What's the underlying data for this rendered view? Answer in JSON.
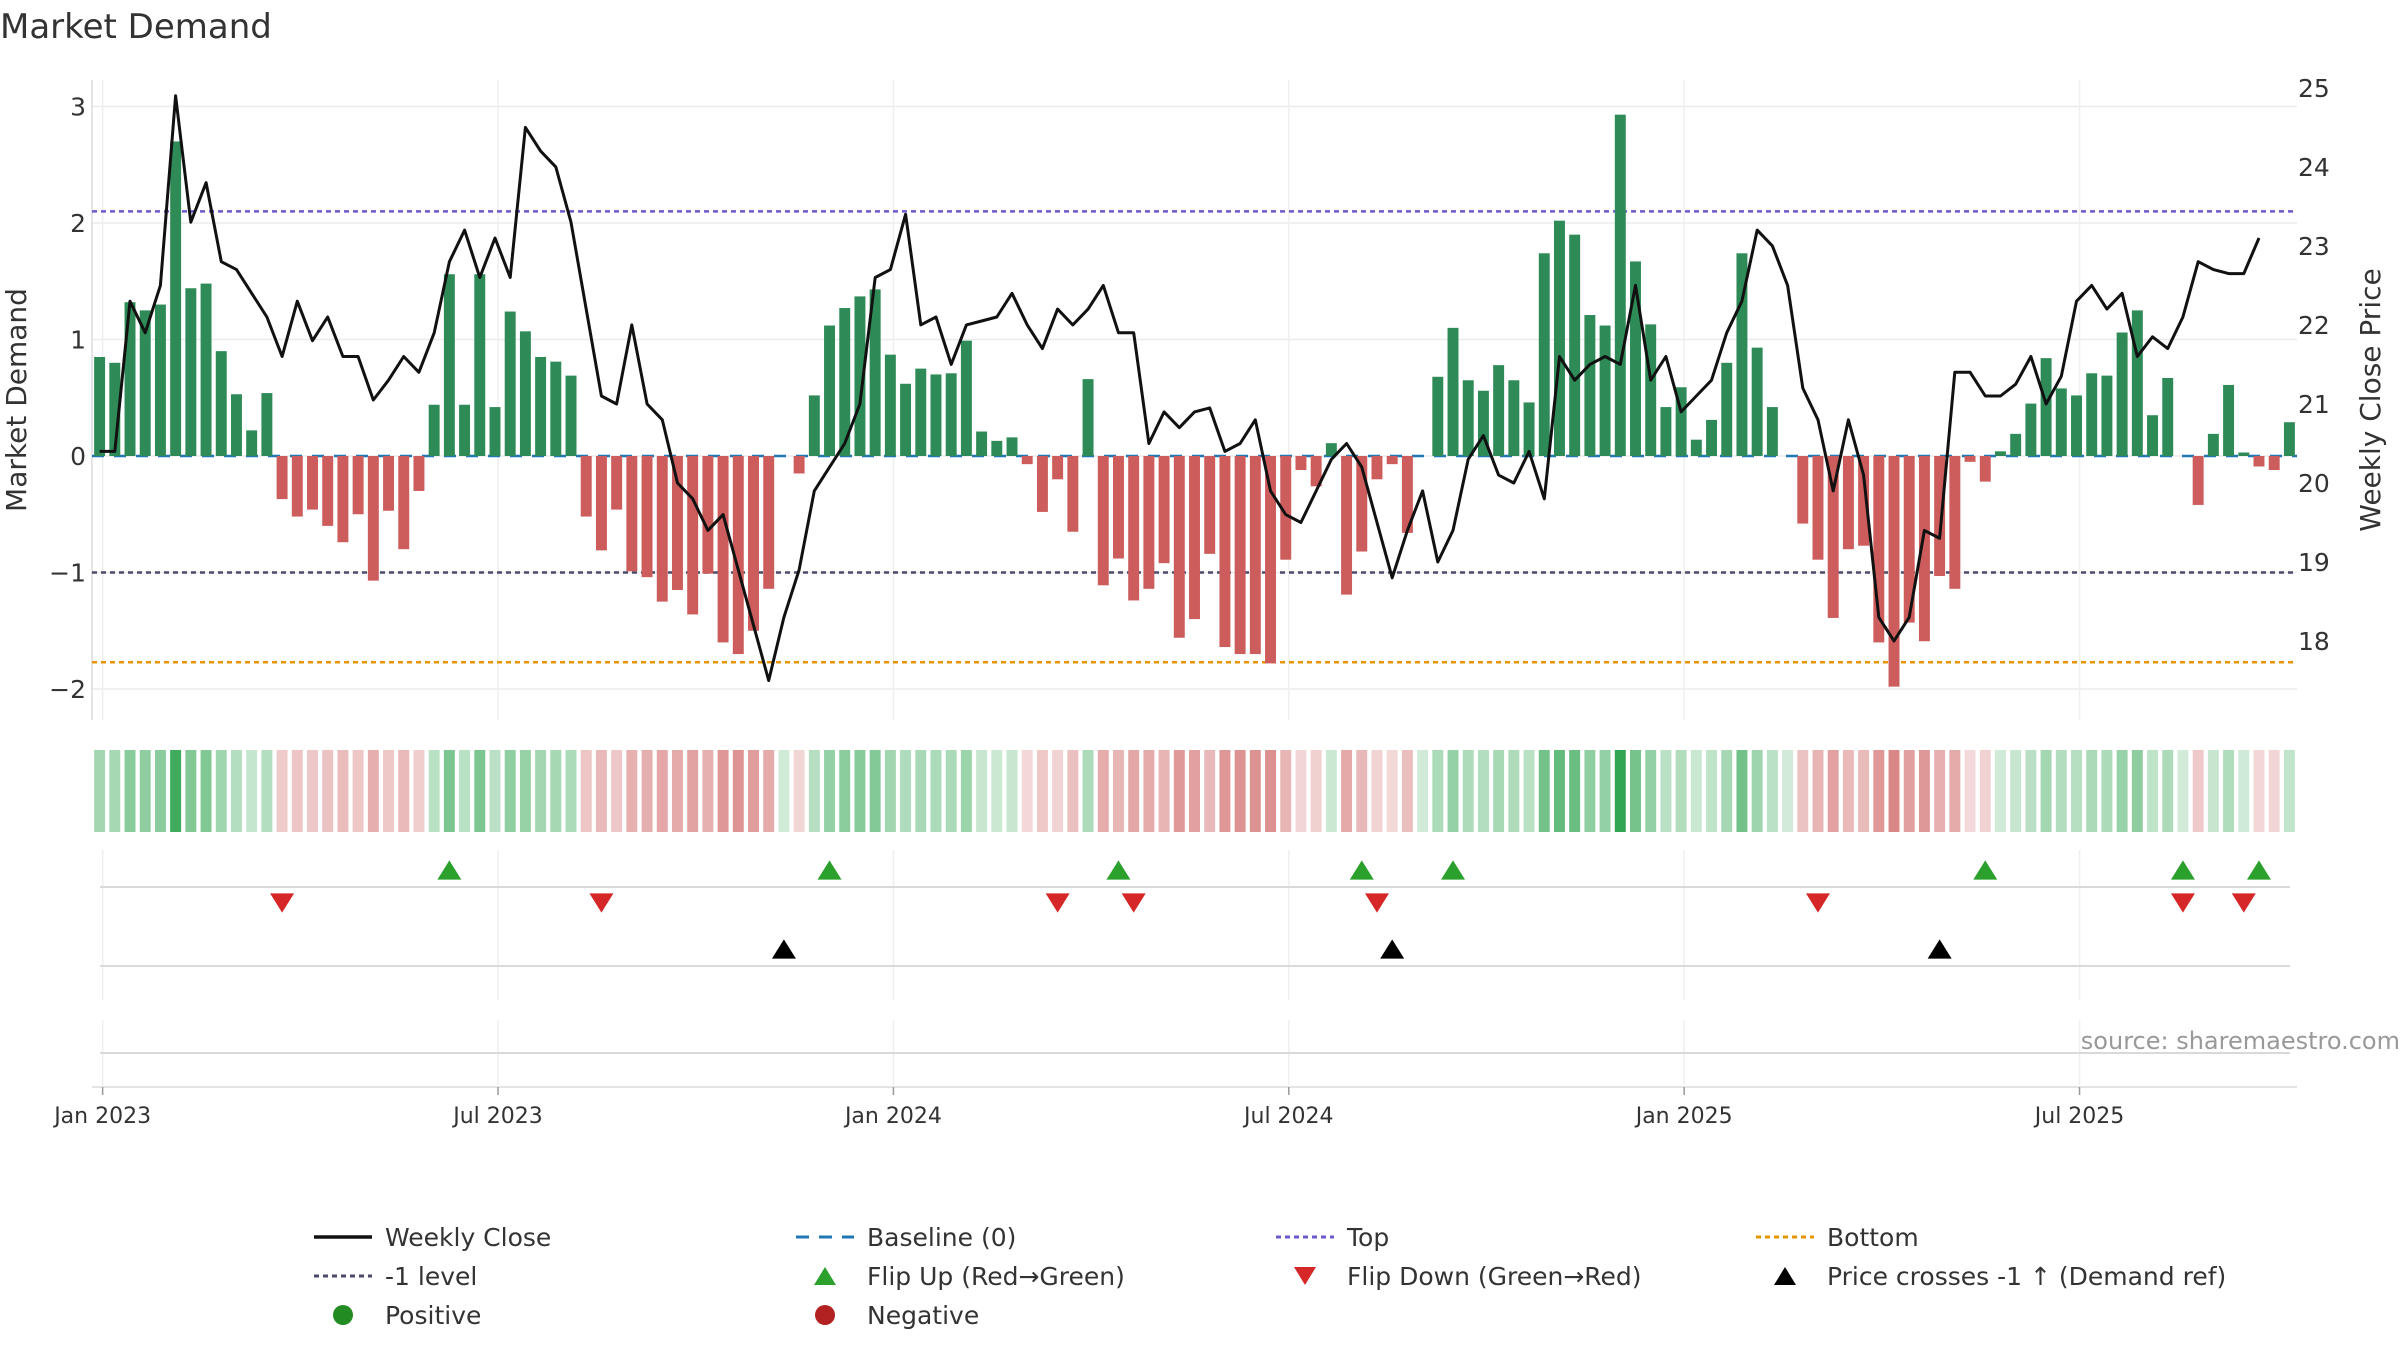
{
  "chart_data": {
    "type": "bar",
    "title": "Market Demand",
    "ylabel_left": "Market Demand",
    "ylabel_right": "Weekly Close Price",
    "ylim_left": [
      -2.25,
      3.15
    ],
    "ylim_right": [
      17.0,
      25.1
    ],
    "yticks_left": [
      3,
      2,
      1,
      0,
      -1,
      -2
    ],
    "yticks_left_labels": [
      "3",
      "2",
      "1",
      "0",
      "−1",
      "−2"
    ],
    "yticks_right": [
      25,
      24,
      23,
      22,
      21,
      20,
      19,
      18
    ],
    "xticks": [
      "Jan 2023",
      "Jul 2023",
      "Jan 2024",
      "Jul 2024",
      "Jan 2025",
      "Jul 2025"
    ],
    "levels": {
      "top": 2.1,
      "minus_one": -1.0,
      "bottom": -1.77,
      "baseline": 0
    },
    "source": "source: sharemaestro.com",
    "colors": {
      "positive": "#2e8b57",
      "negative": "#cd5c5c",
      "close": "#111111",
      "baseline": "#1f77b4",
      "top": "#6a5acd",
      "minus_one": "#4a4a6a",
      "bottom": "#e69500",
      "flip_up": "#2ca02c",
      "flip_down": "#d62728",
      "cross": "#000000",
      "legend_positive": "#228b22",
      "legend_negative": "#b22222"
    },
    "demand": [
      0.85,
      0.8,
      1.32,
      1.25,
      1.3,
      2.7,
      1.44,
      1.48,
      0.9,
      0.53,
      0.22,
      0.54,
      -0.37,
      -0.52,
      -0.46,
      -0.6,
      -0.74,
      -0.5,
      -1.07,
      -0.47,
      -0.8,
      -0.3,
      0.44,
      1.56,
      0.44,
      1.56,
      0.42,
      1.24,
      1.07,
      0.85,
      0.81,
      0.69,
      -0.52,
      -0.81,
      -0.46,
      -0.99,
      -1.04,
      -1.25,
      -1.15,
      -1.36,
      -1.01,
      -1.6,
      -1.7,
      -1.5,
      -1.14,
      0,
      -0.15,
      0.52,
      1.12,
      1.27,
      1.37,
      1.43,
      0.87,
      0.62,
      0.75,
      0.7,
      0.71,
      0.99,
      0.21,
      0.13,
      0.16,
      -0.07,
      -0.48,
      -0.2,
      -0.65,
      0.66,
      -1.11,
      -0.88,
      -1.24,
      -1.14,
      -0.92,
      -1.56,
      -1.4,
      -0.84,
      -1.64,
      -1.7,
      -1.7,
      -1.78,
      -0.89,
      -0.12,
      -0.26,
      0.11,
      -1.19,
      -0.82,
      -0.2,
      -0.07,
      -0.66,
      0,
      0.68,
      1.1,
      0.65,
      0.56,
      0.78,
      0.65,
      0.46,
      1.74,
      2.02,
      1.9,
      1.21,
      1.12,
      2.93,
      1.67,
      1.13,
      0.42,
      0.59,
      0.14,
      0.31,
      0.8,
      1.74,
      0.93,
      0.42,
      0,
      -0.58,
      -0.89,
      -1.39,
      -0.8,
      -0.77,
      -1.6,
      -1.98,
      -1.43,
      -1.59,
      -1.03,
      -1.14,
      -0.05,
      -0.22,
      0.04,
      0.19,
      0.45,
      0.84,
      0.58,
      0.52,
      0.71,
      0.69,
      1.06,
      1.25,
      0.35,
      0.67,
      0,
      -0.42,
      0.19,
      0.61,
      0.03,
      -0.09,
      -0.12,
      0.29
    ],
    "close": [
      20.4,
      20.4,
      22.3,
      21.9,
      22.5,
      24.9,
      23.3,
      23.8,
      22.8,
      22.7,
      22.4,
      22.1,
      21.6,
      22.3,
      21.8,
      22.1,
      21.6,
      21.6,
      21.05,
      21.3,
      21.6,
      21.4,
      21.9,
      22.8,
      23.2,
      22.6,
      23.1,
      22.6,
      24.5,
      24.2,
      24.0,
      23.3,
      22.2,
      21.1,
      21.0,
      22.0,
      21.0,
      20.8,
      20.0,
      19.8,
      19.4,
      19.6,
      18.9,
      18.2,
      17.5,
      18.3,
      18.9,
      19.9,
      20.2,
      20.5,
      21.0,
      22.6,
      22.7,
      23.4,
      22.0,
      22.1,
      21.5,
      22.0,
      22.05,
      22.1,
      22.4,
      22.0,
      21.7,
      22.2,
      22.0,
      22.2,
      22.5,
      21.9,
      21.9,
      20.5,
      20.9,
      20.7,
      20.9,
      20.95,
      20.4,
      20.5,
      20.8,
      19.9,
      19.6,
      19.5,
      19.9,
      20.3,
      20.5,
      20.2,
      19.5,
      18.8,
      19.4,
      19.9,
      19.0,
      19.4,
      20.3,
      20.6,
      20.1,
      20.0,
      20.4,
      19.8,
      21.6,
      21.3,
      21.5,
      21.6,
      21.5,
      22.5,
      21.3,
      21.6,
      20.9,
      21.1,
      21.3,
      21.9,
      22.3,
      23.2,
      23.0,
      22.5,
      21.2,
      20.8,
      19.9,
      20.8,
      20.1,
      18.3,
      18.0,
      18.3,
      19.4,
      19.3,
      21.4,
      21.4,
      21.1,
      21.1,
      21.25,
      21.6,
      21.0,
      21.35,
      22.3,
      22.5,
      22.2,
      22.4,
      21.6,
      21.85,
      21.7,
      22.1,
      22.8,
      22.7,
      22.65,
      22.65,
      23.1
    ],
    "flip_up": [
      23,
      48,
      67,
      83,
      89,
      124,
      137,
      142
    ],
    "flip_down": [
      12,
      33,
      63,
      68,
      84,
      113,
      137,
      141
    ],
    "price_cross": [
      45,
      85,
      121
    ],
    "legend": [
      {
        "label": "Weekly Close",
        "marker": "line",
        "color": "#111111"
      },
      {
        "label": "Baseline (0)",
        "marker": "dash",
        "color": "#1f77b4"
      },
      {
        "label": "Top",
        "marker": "dot",
        "color": "#6a5acd"
      },
      {
        "label": "Bottom",
        "marker": "dot",
        "color": "#e69500"
      },
      {
        "label": "-1 level",
        "marker": "dot",
        "color": "#4a4a6a"
      },
      {
        "label": "Flip Up (Red→Green)",
        "marker": "tri-up",
        "color": "#2ca02c"
      },
      {
        "label": "Flip Down (Green→Red)",
        "marker": "tri-down",
        "color": "#d62728"
      },
      {
        "label": "Price crosses -1 ↑ (Demand ref)",
        "marker": "tri-up",
        "color": "#000000"
      },
      {
        "label": "Positive",
        "marker": "circle",
        "color": "#228b22"
      },
      {
        "label": "Negative",
        "marker": "circle",
        "color": "#b22222"
      }
    ]
  }
}
